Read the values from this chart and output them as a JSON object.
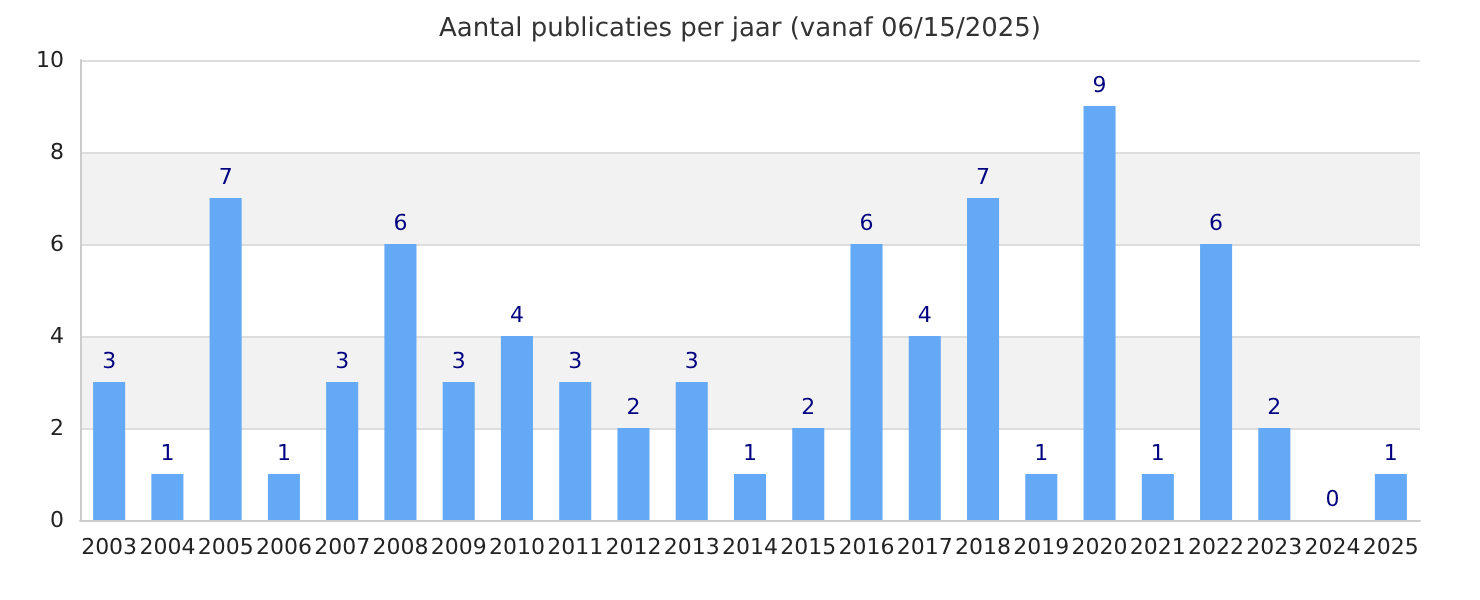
{
  "chart_data": {
    "type": "bar",
    "title": "Aantal publicaties per jaar (vanaf 06/15/2025)",
    "categories": [
      "2003",
      "2004",
      "2005",
      "2006",
      "2007",
      "2008",
      "2009",
      "2010",
      "2011",
      "2012",
      "2013",
      "2014",
      "2015",
      "2016",
      "2017",
      "2018",
      "2019",
      "2020",
      "2021",
      "2022",
      "2023",
      "2024",
      "2025"
    ],
    "values": [
      3,
      1,
      7,
      1,
      3,
      6,
      3,
      4,
      3,
      2,
      3,
      1,
      2,
      6,
      4,
      7,
      1,
      9,
      1,
      6,
      2,
      0,
      1
    ],
    "color": "#63a9f5",
    "ylim": [
      0,
      10
    ],
    "yticks": [
      0,
      2,
      4,
      6,
      8,
      10
    ],
    "grid": true,
    "data_labels": true
  }
}
